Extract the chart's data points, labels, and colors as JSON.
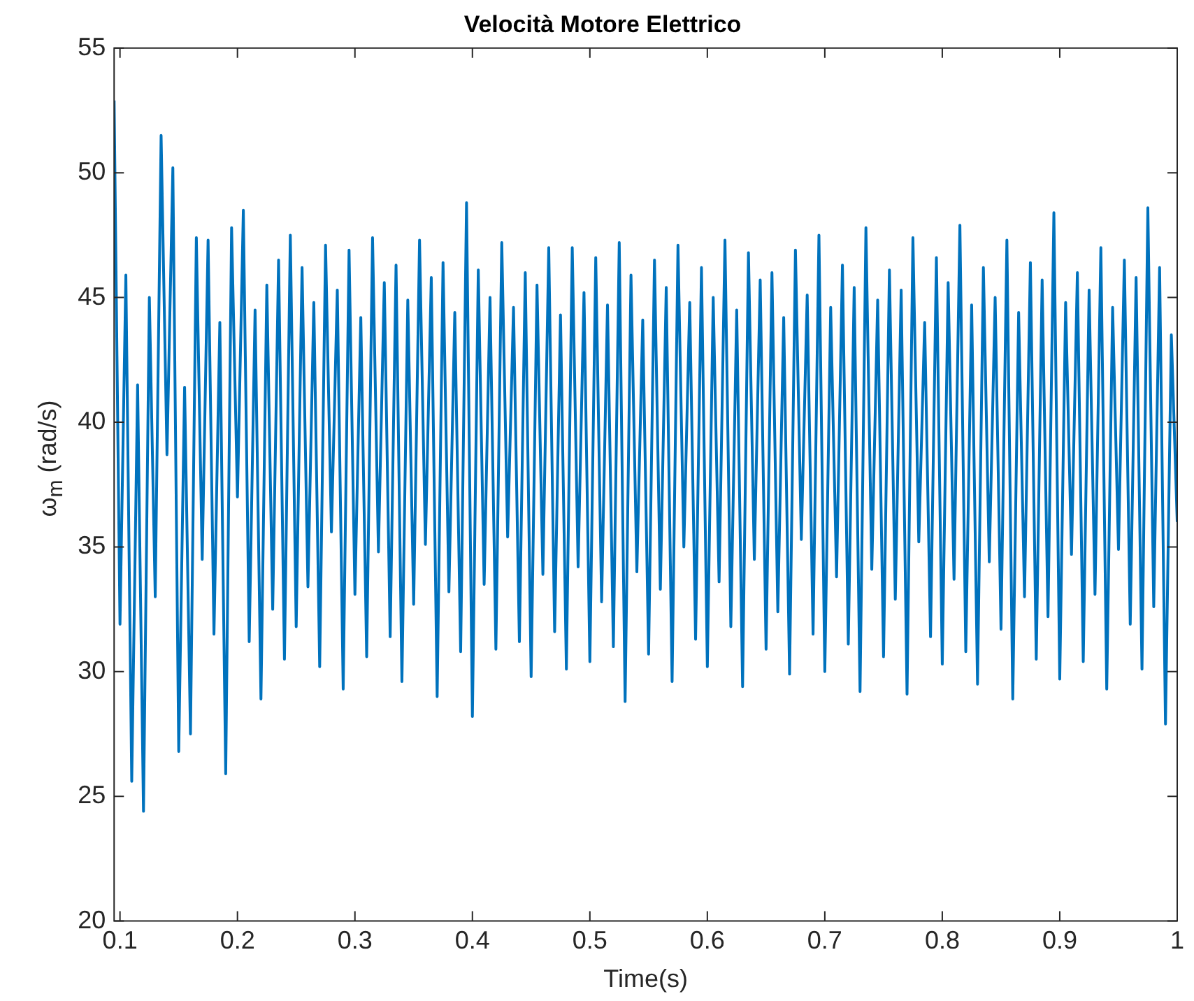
{
  "chart_data": {
    "type": "line",
    "title": "Velocità Motore Elettrico",
    "xlabel": "Time(s)",
    "ylabel": "ω$_{m}$ (rad/s)",
    "x": [
      0.095,
      0.1,
      0.105,
      0.11,
      0.115,
      0.12,
      0.125,
      0.13,
      0.135,
      0.14,
      0.145,
      0.15,
      0.155,
      0.16,
      0.165,
      0.17,
      0.175,
      0.18,
      0.185,
      0.19,
      0.195,
      0.2,
      0.205,
      0.21,
      0.215,
      0.22,
      0.225,
      0.23,
      0.235,
      0.24,
      0.245,
      0.25,
      0.255,
      0.26,
      0.265,
      0.27,
      0.275,
      0.28,
      0.285,
      0.29,
      0.295,
      0.3,
      0.305,
      0.31,
      0.315,
      0.32,
      0.325,
      0.33,
      0.335,
      0.34,
      0.345,
      0.35,
      0.355,
      0.36,
      0.365,
      0.37,
      0.375,
      0.38,
      0.385,
      0.39,
      0.395,
      0.4,
      0.405,
      0.41,
      0.415,
      0.42,
      0.425,
      0.43,
      0.435,
      0.44,
      0.445,
      0.45,
      0.455,
      0.46,
      0.465,
      0.47,
      0.475,
      0.48,
      0.485,
      0.49,
      0.495,
      0.5,
      0.505,
      0.51,
      0.515,
      0.52,
      0.525,
      0.53,
      0.535,
      0.54,
      0.545,
      0.55,
      0.555,
      0.56,
      0.565,
      0.57,
      0.575,
      0.58,
      0.585,
      0.59,
      0.595,
      0.6,
      0.605,
      0.61,
      0.615,
      0.62,
      0.625,
      0.63,
      0.635,
      0.64,
      0.645,
      0.65,
      0.655,
      0.66,
      0.665,
      0.67,
      0.675,
      0.68,
      0.685,
      0.69,
      0.695,
      0.7,
      0.705,
      0.71,
      0.715,
      0.72,
      0.725,
      0.73,
      0.735,
      0.74,
      0.745,
      0.75,
      0.755,
      0.76,
      0.765,
      0.77,
      0.775,
      0.78,
      0.785,
      0.79,
      0.795,
      0.8,
      0.805,
      0.81,
      0.815,
      0.82,
      0.825,
      0.83,
      0.835,
      0.84,
      0.845,
      0.85,
      0.855,
      0.86,
      0.865,
      0.87,
      0.875,
      0.88,
      0.885,
      0.89,
      0.895,
      0.9,
      0.905,
      0.91,
      0.915,
      0.92,
      0.925,
      0.93,
      0.935,
      0.94,
      0.945,
      0.95,
      0.955,
      0.96,
      0.965,
      0.97,
      0.975,
      0.98,
      0.985,
      0.99,
      0.995,
      1.0
    ],
    "series": [
      {
        "color": "#0072bd",
        "values": [
          52.9,
          31.9,
          45.9,
          25.6,
          41.5,
          24.4,
          45,
          33,
          51.5,
          38.7,
          50.2,
          26.8,
          41.4,
          27.5,
          47.4,
          34.5,
          47.3,
          31.5,
          44,
          25.9,
          47.8,
          37,
          48.5,
          31.2,
          44.5,
          28.9,
          45.5,
          32.5,
          46.5,
          30.5,
          47.5,
          31.8,
          46.2,
          33.4,
          44.8,
          30.2,
          47.1,
          35.6,
          45.3,
          29.3,
          46.9,
          33.1,
          44.2,
          30.6,
          47.4,
          34.8,
          45.6,
          31.4,
          46.3,
          29.6,
          44.9,
          32.7,
          47.3,
          35.1,
          45.8,
          29.0,
          46.4,
          33.2,
          44.4,
          30.8,
          48.8,
          28.2,
          46.1,
          33.5,
          45.0,
          30.9,
          47.2,
          35.4,
          44.6,
          31.2,
          46.0,
          29.8,
          45.5,
          33.9,
          47.0,
          31.6,
          44.3,
          30.1,
          47.0,
          34.2,
          45.2,
          30.4,
          46.6,
          32.8,
          44.7,
          31.0,
          47.2,
          28.8,
          45.9,
          34.0,
          44.1,
          30.7,
          46.5,
          33.3,
          45.4,
          29.6,
          47.1,
          35.0,
          44.8,
          31.3,
          46.2,
          30.2,
          45.0,
          33.6,
          47.3,
          31.8,
          44.5,
          29.4,
          46.8,
          34.5,
          45.7,
          30.9,
          46.0,
          32.4,
          44.2,
          29.9,
          46.9,
          35.3,
          45.1,
          31.5,
          47.5,
          30.0,
          44.6,
          33.8,
          46.3,
          31.1,
          45.4,
          29.2,
          47.8,
          34.1,
          44.9,
          30.6,
          46.1,
          32.9,
          45.3,
          29.1,
          47.4,
          35.2,
          44.0,
          31.4,
          46.6,
          30.3,
          45.6,
          33.7,
          47.9,
          30.8,
          44.7,
          29.5,
          46.2,
          34.4,
          45.0,
          31.7,
          47.3,
          28.9,
          44.4,
          33.0,
          46.4,
          30.5,
          45.7,
          32.2,
          48.4,
          29.7,
          44.8,
          34.7,
          46.0,
          30.4,
          45.3,
          33.1,
          47.0,
          29.3,
          44.6,
          34.9,
          46.5,
          31.9,
          45.8,
          30.1,
          48.6,
          32.6,
          46.2,
          27.9,
          43.5,
          36.0
        ]
      }
    ],
    "xlim": [
      0.095,
      1
    ],
    "xticks": [
      {
        "value": 0.1,
        "label": "0.1"
      },
      {
        "value": 0.2,
        "label": "0.2"
      },
      {
        "value": 0.3,
        "label": "0.3"
      },
      {
        "value": 0.4,
        "label": "0.4"
      },
      {
        "value": 0.5,
        "label": "0.5"
      },
      {
        "value": 0.6,
        "label": "0.6"
      },
      {
        "value": 0.7,
        "label": "0.7"
      },
      {
        "value": 0.8,
        "label": "0.8"
      },
      {
        "value": 0.9,
        "label": "0.9"
      },
      {
        "value": 1,
        "label": "1"
      }
    ],
    "ylim": [
      20,
      55
    ],
    "yticks": [
      20,
      25,
      30,
      35,
      40,
      45,
      50,
      55
    ],
    "grid": false,
    "legend": false,
    "marker": "none",
    "line_style": "solid"
  }
}
